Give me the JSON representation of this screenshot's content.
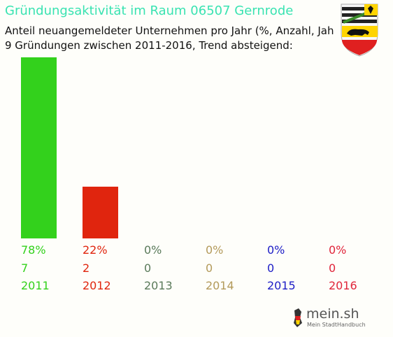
{
  "chart_data": {
    "type": "bar",
    "title": "Gründungsaktivität im Raum 06507 Gernrode",
    "subtitle_lines": [
      "Anteil neuangemeldeter Unternehmen pro Jahr (%, Anzahl, Jahr)",
      "9 Gründungen zwischen 2011-2016, Trend absteigend:"
    ],
    "categories": [
      "2011",
      "2012",
      "2013",
      "2014",
      "2015",
      "2016"
    ],
    "values": [
      7,
      2,
      0,
      0,
      0,
      0
    ],
    "percent_labels": [
      "78%",
      "22%",
      "0%",
      "0%",
      "0%",
      "0%"
    ],
    "count_labels": [
      "7",
      "2",
      "0",
      "0",
      "0",
      "0"
    ],
    "colors": [
      "#33d11c",
      "#e0250e",
      "#5a7a5a",
      "#b39a5a",
      "#1d1dc6",
      "#e0253a"
    ],
    "ylim": [
      0,
      7
    ],
    "grid": false,
    "legend": "none"
  },
  "logo": {
    "name": "mein.sh",
    "tagline": "Mein StadtHandbuch"
  },
  "coat_of_arms_icon": "saxony-anhalt-coat-of-arms"
}
